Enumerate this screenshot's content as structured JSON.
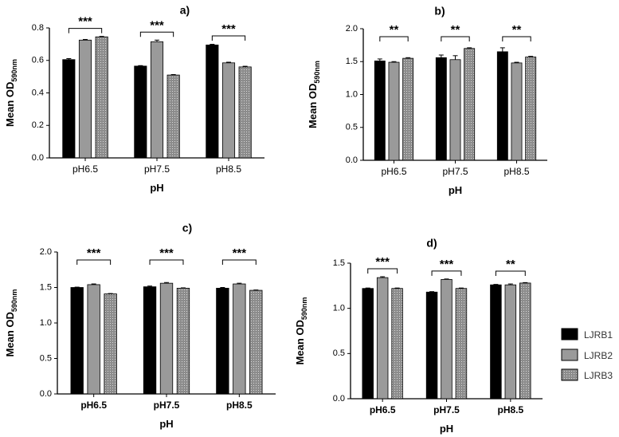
{
  "colors": {
    "LJRB1": "#000000",
    "LJRB2": "#9a9a9a",
    "LJRB3": "#8c8c8c"
  },
  "legend": {
    "items": [
      "LJRB1",
      "LJRB2",
      "LJRB3"
    ]
  },
  "chart_data": [
    {
      "type": "bar",
      "title": "a)",
      "ylabel": "Mean OD",
      "ylabel_sub": "590nm",
      "xlabel": "pH",
      "categories": [
        "pH6.5",
        "pH7.5",
        "pH8.5"
      ],
      "ylim": [
        0,
        0.8
      ],
      "yticks": [
        "0.0",
        "0.2",
        "0.4",
        "0.6",
        "0.8"
      ],
      "series": [
        {
          "name": "LJRB1",
          "values": [
            0.605,
            0.565,
            0.695
          ],
          "errors": [
            0.006,
            0.003,
            0.004
          ]
        },
        {
          "name": "LJRB2",
          "values": [
            0.725,
            0.715,
            0.585
          ],
          "errors": [
            0.004,
            0.01,
            0.004
          ]
        },
        {
          "name": "LJRB3",
          "values": [
            0.745,
            0.51,
            0.56
          ],
          "errors": [
            0.003,
            0.003,
            0.004
          ]
        }
      ],
      "significance": [
        "***",
        "***",
        "***"
      ]
    },
    {
      "type": "bar",
      "title": "b)",
      "ylabel": "Mean OD",
      "ylabel_sub": "590nm",
      "xlabel": "pH",
      "categories": [
        "pH6.5",
        "pH7.5",
        "pH8.5"
      ],
      "ylim": [
        0,
        2.0
      ],
      "yticks": [
        "0.0",
        "0.5",
        "1.0",
        "1.5",
        "2.0"
      ],
      "series": [
        {
          "name": "LJRB1",
          "values": [
            1.51,
            1.56,
            1.65
          ],
          "errors": [
            0.03,
            0.04,
            0.06
          ]
        },
        {
          "name": "LJRB2",
          "values": [
            1.49,
            1.53,
            1.48
          ],
          "errors": [
            0.01,
            0.06,
            0.01
          ]
        },
        {
          "name": "LJRB3",
          "values": [
            1.55,
            1.7,
            1.57
          ],
          "errors": [
            0.01,
            0.01,
            0.01
          ]
        }
      ],
      "significance": [
        "**",
        "**",
        "**"
      ]
    },
    {
      "type": "bar",
      "title": "c)",
      "ylabel": "Mean OD",
      "ylabel_sub": "590nm",
      "xlabel": "pH",
      "categories": [
        "pH6.5",
        "pH7.5",
        "pH8.5"
      ],
      "ylim": [
        0,
        2.0
      ],
      "yticks": [
        "0.0",
        "0.5",
        "1.0",
        "1.5",
        "2.0"
      ],
      "series": [
        {
          "name": "LJRB1",
          "values": [
            1.5,
            1.51,
            1.49
          ],
          "errors": [
            0.005,
            0.01,
            0.01
          ]
        },
        {
          "name": "LJRB2",
          "values": [
            1.54,
            1.56,
            1.55
          ],
          "errors": [
            0.01,
            0.01,
            0.01
          ]
        },
        {
          "name": "LJRB3",
          "values": [
            1.41,
            1.49,
            1.46
          ],
          "errors": [
            0.005,
            0.005,
            0.005
          ]
        }
      ],
      "significance": [
        "***",
        "***",
        "***"
      ]
    },
    {
      "type": "bar",
      "title": "d)",
      "ylabel": "Mean OD",
      "ylabel_sub": "590nm",
      "xlabel": "pH",
      "categories": [
        "pH6.5",
        "pH7.5",
        "pH8.5"
      ],
      "ylim": [
        0,
        1.5
      ],
      "yticks": [
        "0.0",
        "0.5",
        "1.0",
        "1.5"
      ],
      "series": [
        {
          "name": "LJRB1",
          "values": [
            1.22,
            1.18,
            1.26
          ],
          "errors": [
            0.005,
            0.005,
            0.005
          ]
        },
        {
          "name": "LJRB2",
          "values": [
            1.34,
            1.32,
            1.26
          ],
          "errors": [
            0.01,
            0.005,
            0.01
          ]
        },
        {
          "name": "LJRB3",
          "values": [
            1.22,
            1.22,
            1.28
          ],
          "errors": [
            0.005,
            0.005,
            0.005
          ]
        }
      ],
      "significance": [
        "***",
        "***",
        "**"
      ]
    }
  ]
}
